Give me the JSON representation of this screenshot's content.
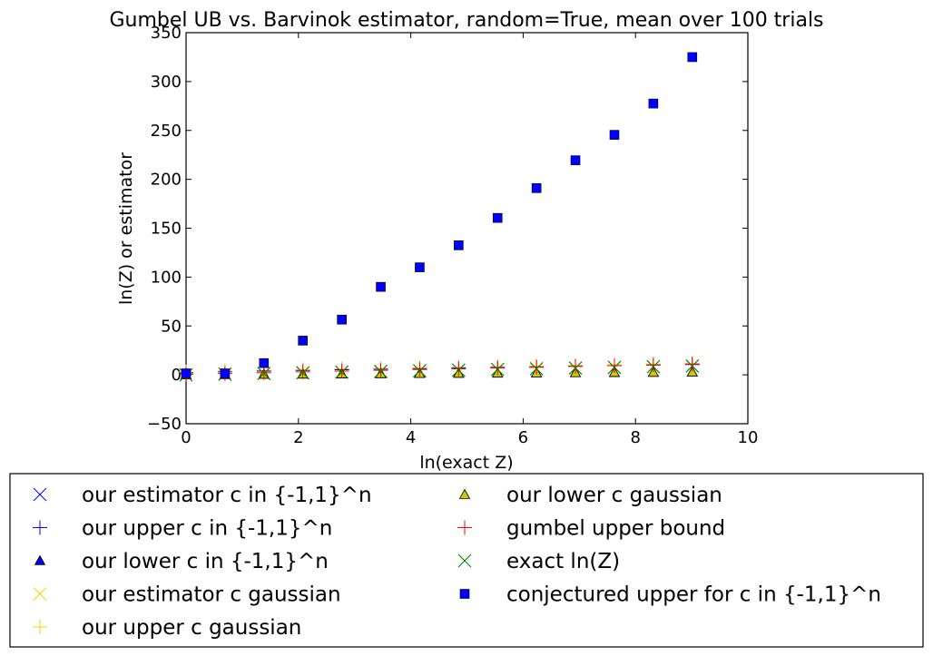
{
  "chart_data": {
    "type": "scatter",
    "title": "Gumbel UB vs. Barvinok estimator, random=True, mean over 100 trials",
    "xlabel": "ln(exact Z)",
    "ylabel": "ln(Z) or estimator",
    "xlim": [
      0,
      10
    ],
    "ylim": [
      -50,
      350
    ],
    "xticks": [
      0,
      2,
      4,
      6,
      8,
      10
    ],
    "yticks": [
      -50,
      0,
      50,
      100,
      150,
      200,
      250,
      300,
      350
    ],
    "grid": false,
    "legend_placement": "below-plot",
    "legend_columns": 2,
    "x": [
      0.0,
      0.693,
      1.386,
      2.079,
      2.773,
      3.466,
      4.159,
      4.852,
      5.545,
      6.238,
      6.931,
      7.625,
      8.318,
      9.011
    ],
    "series": [
      {
        "name": "our estimator c in {-1,1}^n",
        "marker": "x",
        "color": "#0000ff",
        "values": [
          0.0,
          0.7,
          1.4,
          2.1,
          2.8,
          3.5,
          4.2,
          4.9,
          5.5,
          6.2,
          6.9,
          7.6,
          8.3,
          9.0
        ]
      },
      {
        "name": "our upper c in {-1,1}^n",
        "marker": "+",
        "color": "#0000ff",
        "values": [
          2.0,
          3.0,
          3.8,
          4.5,
          5.2,
          5.8,
          6.4,
          7.0,
          7.6,
          8.2,
          8.8,
          9.4,
          10.0,
          10.6
        ]
      },
      {
        "name": "our lower c in {-1,1}^n",
        "marker": "^",
        "color": "#0000ff",
        "values": [
          0.0,
          0.3,
          0.5,
          0.7,
          0.9,
          1.1,
          1.3,
          1.5,
          1.7,
          1.9,
          2.1,
          2.3,
          2.5,
          2.7
        ]
      },
      {
        "name": "our estimator c gaussian",
        "marker": "x",
        "color": "#ffcc00",
        "values": [
          0.0,
          0.8,
          1.6,
          2.3,
          3.0,
          3.7,
          4.4,
          5.0,
          5.6,
          6.3,
          7.0,
          7.7,
          8.4,
          9.1
        ]
      },
      {
        "name": "our upper c gaussian",
        "marker": "+",
        "color": "#ffcc00",
        "values": [
          3.0,
          4.0,
          4.8,
          5.5,
          6.1,
          6.7,
          7.3,
          7.9,
          8.5,
          9.1,
          9.7,
          10.3,
          10.9,
          11.5
        ]
      },
      {
        "name": "our lower c gaussian",
        "marker": "^",
        "color": "#cccc00",
        "values": [
          0.0,
          0.3,
          0.6,
          0.8,
          1.0,
          1.2,
          1.4,
          1.6,
          1.8,
          2.0,
          2.2,
          2.4,
          2.6,
          2.8
        ]
      },
      {
        "name": "gumbel upper bound",
        "marker": "+",
        "color": "#ff0000",
        "values": [
          0.5,
          1.3,
          2.2,
          3.0,
          3.8,
          4.6,
          5.4,
          6.2,
          7.0,
          7.8,
          8.6,
          9.4,
          10.2,
          11.0
        ]
      },
      {
        "name": "exact ln(Z)",
        "marker": "x",
        "color": "#008000",
        "values": [
          0.0,
          0.693,
          1.386,
          2.079,
          2.773,
          3.466,
          4.159,
          4.852,
          5.545,
          6.238,
          6.931,
          7.625,
          8.318,
          9.011
        ]
      },
      {
        "name": "conjectured upper for c in {-1,1}^n",
        "marker": "s",
        "color": "#0000ff",
        "values": [
          1.5,
          1.5,
          12.0,
          35.0,
          56.5,
          90.0,
          110.0,
          132.5,
          160.5,
          191.0,
          219.5,
          245.5,
          277.5,
          325.0
        ]
      }
    ]
  }
}
